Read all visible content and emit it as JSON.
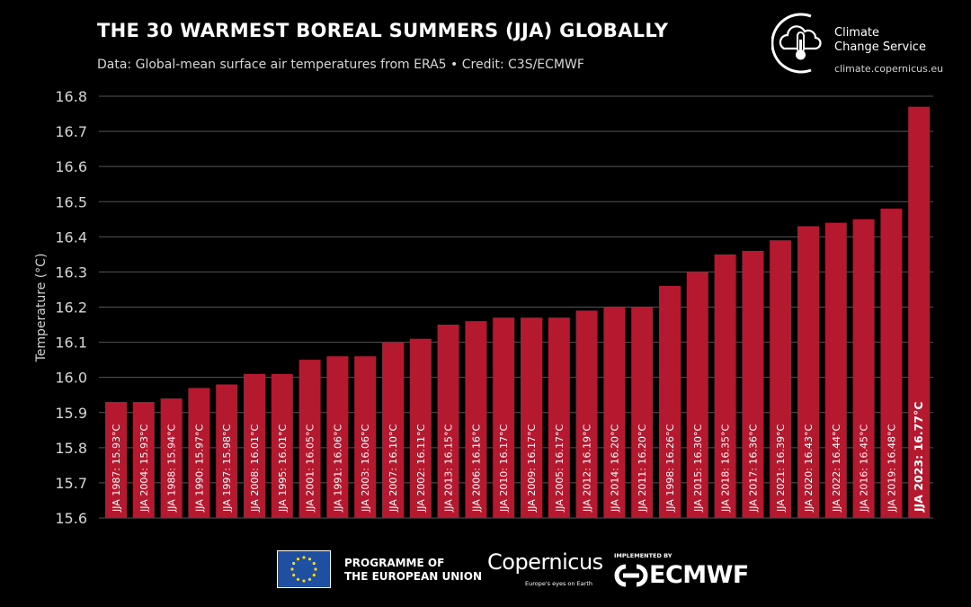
{
  "header": {
    "title": "THE 30 WARMEST BOREAL SUMMERS (JJA) GLOBALLY",
    "subtitle": "Data: Global-mean surface air temperatures from ERA5 • Credit: C3S/ECMWF"
  },
  "brand": {
    "line1": "Climate",
    "line2": "Change Service",
    "url": "climate.copernicus.eu",
    "icon": "cloud-thermometer-icon"
  },
  "footer": {
    "eu_line1": "PROGRAMME OF",
    "eu_line2": "THE EUROPEAN UNION",
    "copernicus_word": "Copernicus",
    "copernicus_tagline": "Europe's eyes on Earth",
    "implemented_by": "IMPLEMENTED BY",
    "ecmwf_word": "ECMWF",
    "eu_flag_icon": "eu-flag-icon"
  },
  "colors": {
    "bar": "#b5192f",
    "background": "#000000",
    "grid": "#555555",
    "text": "#ffffff"
  },
  "chart_data": {
    "type": "bar",
    "title": "THE 30 WARMEST BOREAL SUMMERS (JJA) GLOBALLY",
    "ylabel": "Temperature (°C)",
    "xlabel": "",
    "ylim": [
      15.6,
      16.8
    ],
    "yticks": [
      "15.6",
      "15.7",
      "15.8",
      "15.9",
      "16.0",
      "16.1",
      "16.2",
      "16.3",
      "16.4",
      "16.5",
      "16.6",
      "16.7",
      "16.8"
    ],
    "grid": true,
    "highlight_last": true,
    "categories": [
      "JJA 1987",
      "JJA 2004",
      "JJA 1988",
      "JJA 1990",
      "JJA 1997",
      "JJA 2008",
      "JJA 1995",
      "JJA 2001",
      "JJA 1991",
      "JJA 2003",
      "JJA 2007",
      "JJA 2002",
      "JJA 2013",
      "JJA 2006",
      "JJA 2010",
      "JJA 2009",
      "JJA 2005",
      "JJA 2012",
      "JJA 2014",
      "JJA 2011",
      "JJA 1998",
      "JJA 2015",
      "JJA 2018",
      "JJA 2017",
      "JJA 2021",
      "JJA 2020",
      "JJA 2022",
      "JJA 2016",
      "JJA 2019",
      "JJA 2023"
    ],
    "values": [
      15.93,
      15.93,
      15.94,
      15.97,
      15.98,
      16.01,
      16.01,
      16.05,
      16.06,
      16.06,
      16.1,
      16.11,
      16.15,
      16.16,
      16.17,
      16.17,
      16.17,
      16.19,
      16.2,
      16.2,
      16.26,
      16.3,
      16.35,
      16.36,
      16.39,
      16.43,
      16.44,
      16.45,
      16.48,
      16.77
    ],
    "labels": [
      "JJA 1987: 15.93°C",
      "JJA 2004: 15.93°C",
      "JJA 1988: 15.94°C",
      "JJA 1990: 15.97°C",
      "JJA 1997: 15.98°C",
      "JJA 2008: 16.01°C",
      "JJA 1995: 16.01°C",
      "JJA 2001: 16.05°C",
      "JJA 1991: 16.06°C",
      "JJA 2003: 16.06°C",
      "JJA 2007: 16.10°C",
      "JJA 2002: 16.11°C",
      "JJA 2013: 16.15°C",
      "JJA 2006: 16.16°C",
      "JJA 2010: 16.17°C",
      "JJA 2009: 16.17°C",
      "JJA 2005: 16.17°C",
      "JJA 2012: 16.19°C",
      "JJA 2014: 16.20°C",
      "JJA 2011: 16.20°C",
      "JJA 1998: 16.26°C",
      "JJA 2015: 16.30°C",
      "JJA 2018: 16.35°C",
      "JJA 2017: 16.36°C",
      "JJA 2021: 16.39°C",
      "JJA 2020: 16.43°C",
      "JJA 2022: 16.44°C",
      "JJA 2016: 16.45°C",
      "JJA 2019: 16.48°C",
      "JJA 2023: 16.77°C"
    ]
  }
}
